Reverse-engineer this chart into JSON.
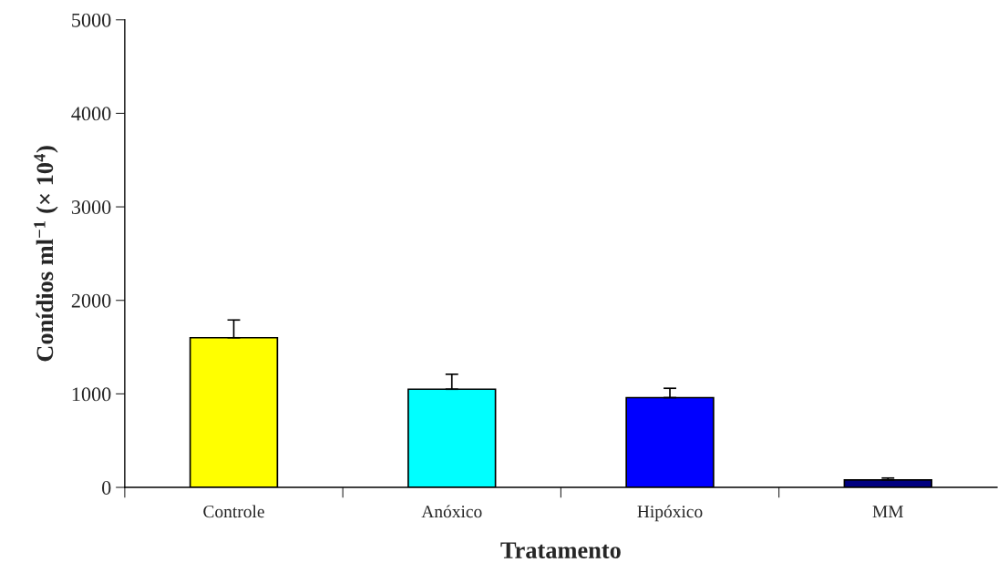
{
  "chart_data": {
    "type": "bar",
    "xlabel": "Tratamento",
    "ylabel": "Conídios ml$^{−1}$ (× 10$^{4}$)",
    "categories": [
      "Controle",
      "Anóxico",
      "Hipóxico",
      "MM"
    ],
    "values": [
      1600,
      1050,
      960,
      80
    ],
    "errors": [
      [
        1600,
        1790
      ],
      [
        1050,
        1210
      ],
      [
        960,
        1060
      ],
      [
        80,
        100
      ]
    ],
    "colors": [
      "#ffff00",
      "#00ffff",
      "#0000ff",
      "#000080"
    ],
    "ylim": [
      0,
      5000
    ],
    "yticks": [
      0,
      1000,
      2000,
      3000,
      4000,
      5000
    ],
    "grid": false,
    "legend": false
  }
}
